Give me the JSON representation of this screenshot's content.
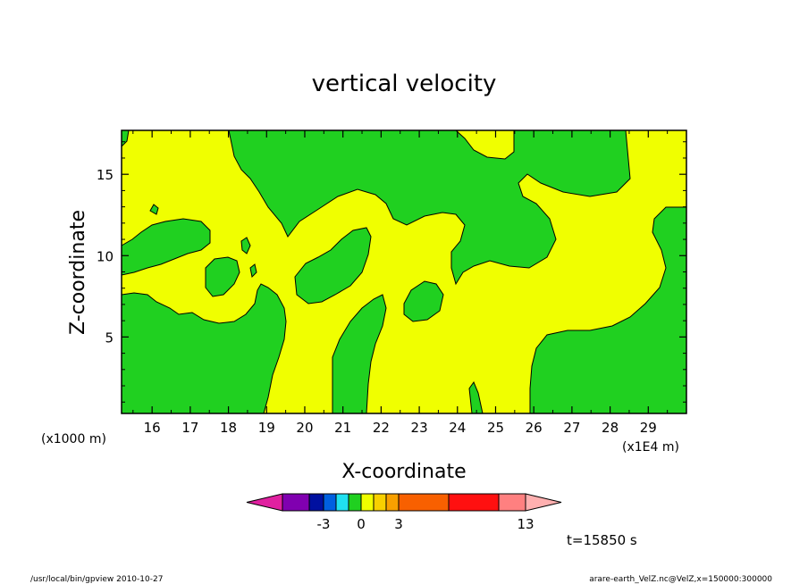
{
  "chart_data": {
    "type": "heatmap",
    "title": "vertical velocity",
    "xlabel": "X-coordinate",
    "ylabel": "Z-coordinate",
    "x_unit_label": "(x1E4 m)",
    "y_unit_label": "(x1000 m)",
    "xlim": [
      15.2,
      30.0
    ],
    "ylim": [
      0.3,
      17.7
    ],
    "x_ticks": [
      16,
      17,
      18,
      19,
      20,
      21,
      22,
      23,
      24,
      25,
      26,
      27,
      28,
      29
    ],
    "y_ticks": [
      5,
      10,
      15
    ],
    "x_tick_labels": [
      "16",
      "17",
      "18",
      "19",
      "20",
      "21",
      "22",
      "23",
      "24",
      "25",
      "26",
      "27",
      "28",
      "29"
    ],
    "y_tick_labels": [
      "5",
      "10",
      "15"
    ],
    "colorbar": {
      "colors": [
        "#e020a0",
        "#8000b0",
        "#0010a0",
        "#0060e0",
        "#20e0f0",
        "#20d020",
        "#f0ff00",
        "#f8d000",
        "#f8a000",
        "#f86000",
        "#ff1010",
        "#ff8080",
        "#ffb0b0"
      ],
      "labels": [
        {
          "text": "-3",
          "value": -3
        },
        {
          "text": "0",
          "value": 0
        },
        {
          "text": "3",
          "value": 3
        },
        {
          "text": "13",
          "value": 13
        }
      ]
    },
    "regions": {
      "green_fill": "#20d020",
      "yellow_fill": "#f0ff00"
    },
    "time_label": "t=15850 s"
  },
  "footer": {
    "left": "/usr/local/bin/gpview  2010-10-27",
    "right": "arare-earth_VelZ.nc@VelZ,x=150000:300000"
  }
}
